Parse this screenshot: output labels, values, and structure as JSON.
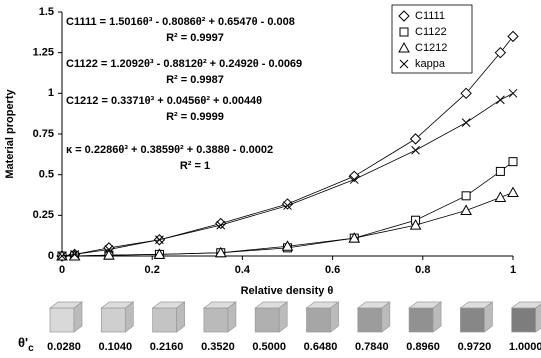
{
  "chart_data": {
    "type": "line",
    "x_label": "Relative density θ",
    "y_label": "Material property",
    "x": [
      0,
      0.028,
      0.104,
      0.216,
      0.352,
      0.5,
      0.648,
      0.784,
      0.896,
      0.972,
      1.0
    ],
    "series": [
      {
        "name": "C1111",
        "color": "#000000",
        "marker": "diamond",
        "values": [
          0,
          0.01,
          0.05,
          0.1,
          0.2,
          0.32,
          0.49,
          0.72,
          1.0,
          1.25,
          1.35
        ]
      },
      {
        "name": "C1122",
        "color": "#000000",
        "marker": "square",
        "values": [
          0,
          0,
          0.005,
          0.01,
          0.02,
          0.05,
          0.11,
          0.22,
          0.37,
          0.52,
          0.58
        ]
      },
      {
        "name": "C1212",
        "color": "#000000",
        "marker": "triangle",
        "values": [
          0,
          0,
          0.005,
          0.01,
          0.02,
          0.06,
          0.11,
          0.19,
          0.28,
          0.36,
          0.39
        ]
      },
      {
        "name": "kappa",
        "color": "#000000",
        "marker": "cross",
        "values": [
          0,
          0.01,
          0.04,
          0.1,
          0.19,
          0.31,
          0.47,
          0.65,
          0.82,
          0.96,
          1.0
        ]
      }
    ],
    "annotations": [
      "C1111 = 1.5016θ³ - 0.8086θ² + 0.6547θ - 0.008",
      "R² = 0.9997",
      "C1122 = 1.2092θ³ - 0.8812θ² + 0.2492θ - 0.0069",
      "R² = 0.9987",
      "C1212 = 0.3371θ³ + 0.0456θ² + 0.0044θ",
      "R² = 0.9999",
      "κ = 0.2286θ³ + 0.3859θ² + 0.388θ - 0.0002",
      "R² = 1"
    ],
    "xlim": [
      0,
      1
    ],
    "ylim": [
      0,
      1.5
    ],
    "xticks": [
      0,
      0.2,
      0.4,
      0.6,
      0.8,
      1
    ],
    "yticks": [
      0,
      0.25,
      0.5,
      0.75,
      1,
      1.25,
      1.5
    ],
    "grid": false,
    "legend": "upper right"
  },
  "thumbnails": {
    "label": "θ'",
    "subscript": "c",
    "items": [
      "0.0280",
      "0.1040",
      "0.2160",
      "0.3520",
      "0.5000",
      "0.6480",
      "0.7840",
      "0.8960",
      "0.9720",
      "1.0000"
    ]
  }
}
